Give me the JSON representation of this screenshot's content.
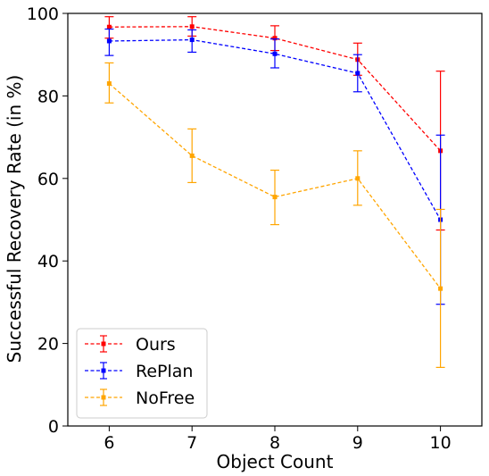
{
  "chart_data": {
    "type": "line",
    "title": "",
    "xlabel": "Object Count",
    "ylabel": "Successful Recovery Rate (in %)",
    "x": [
      6,
      7,
      8,
      9,
      10
    ],
    "xlim": [
      5.5,
      10.5
    ],
    "ylim": [
      0,
      100
    ],
    "xticks": [
      "6",
      "7",
      "8",
      "9",
      "10"
    ],
    "yticks": [
      "0",
      "20",
      "40",
      "60",
      "80",
      "100"
    ],
    "grid": false,
    "legend_position": "bottom-left",
    "series": [
      {
        "name": "Ours",
        "color": "#ff0000",
        "values": [
          96.7,
          96.8,
          94.0,
          88.8,
          66.7
        ],
        "err_low": [
          94.0,
          94.5,
          91.0,
          85.0,
          47.5
        ],
        "err_high": [
          99.2,
          99.2,
          97.0,
          92.8,
          86.0
        ]
      },
      {
        "name": "RePlan",
        "color": "#0000ff",
        "values": [
          93.3,
          93.6,
          90.2,
          85.5,
          50.0
        ],
        "err_low": [
          89.8,
          90.6,
          86.8,
          81.0,
          29.5
        ],
        "err_high": [
          96.2,
          96.0,
          93.8,
          90.0,
          70.5
        ]
      },
      {
        "name": "NoFree",
        "color": "#ffa500",
        "values": [
          83.0,
          65.5,
          55.5,
          60.0,
          33.3
        ],
        "err_low": [
          78.3,
          59.0,
          48.8,
          53.5,
          14.2
        ],
        "err_high": [
          88.0,
          72.0,
          62.0,
          66.7,
          52.5
        ]
      }
    ]
  }
}
